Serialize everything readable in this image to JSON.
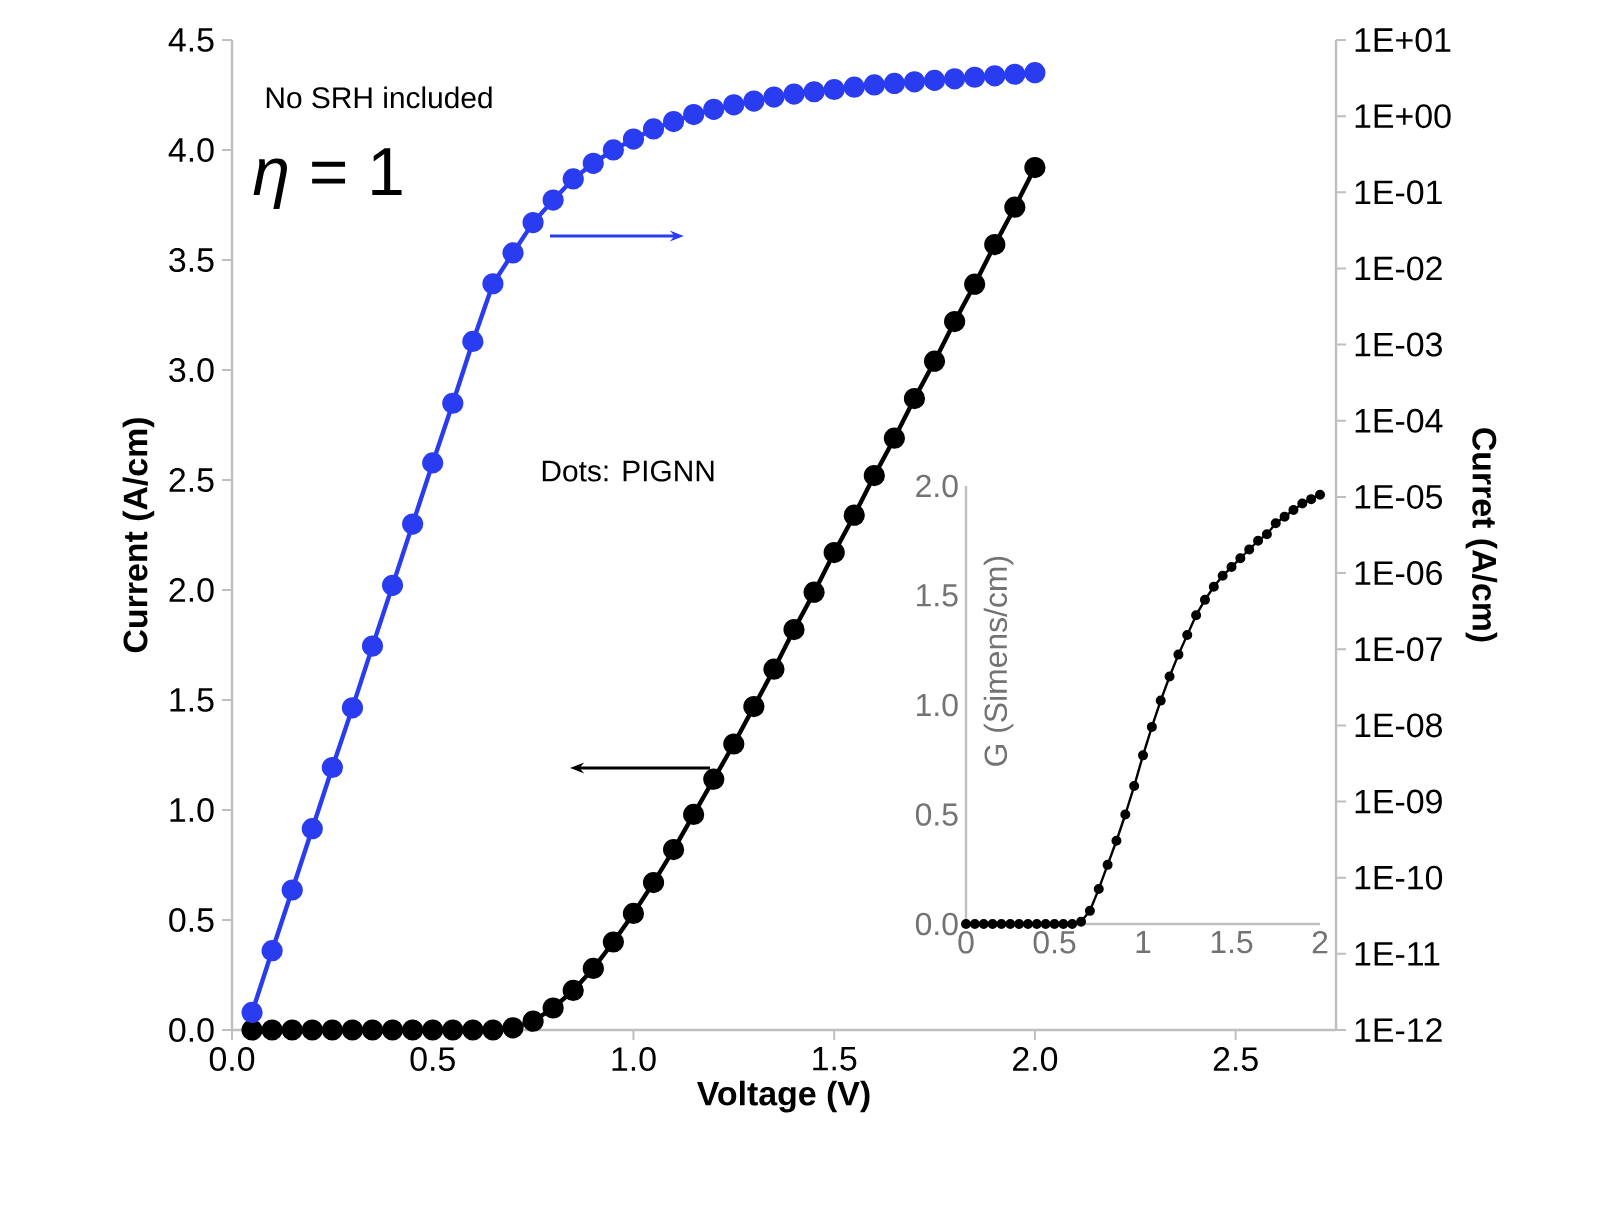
{
  "chart_data": [
    {
      "type": "line",
      "xlabel": "Voltage (V)",
      "ylabel": "Current (A/cm)",
      "y2label": "Curret (A/cm)",
      "xlim": [
        0,
        2.75
      ],
      "ylim": [
        0,
        4.5
      ],
      "y2lim": [
        1e-12,
        10
      ],
      "log": "y2",
      "xticks": [
        {
          "value": 0,
          "label": "0.0"
        },
        {
          "value": 0.5,
          "label": "0.5"
        },
        {
          "value": 1,
          "label": "1.0"
        },
        {
          "value": 1.5,
          "label": "1.5"
        },
        {
          "value": 2,
          "label": "2.0"
        },
        {
          "value": 2.5,
          "label": "2.5"
        }
      ],
      "yticks": [
        {
          "value": 0,
          "label": "0.0"
        },
        {
          "value": 0.5,
          "label": "0.5"
        },
        {
          "value": 1,
          "label": "1.0"
        },
        {
          "value": 1.5,
          "label": "1.5"
        },
        {
          "value": 2,
          "label": "2.0"
        },
        {
          "value": 2.5,
          "label": "2.5"
        },
        {
          "value": 3,
          "label": "3.0"
        },
        {
          "value": 3.5,
          "label": "3.5"
        },
        {
          "value": 4,
          "label": "4.0"
        },
        {
          "value": 4.5,
          "label": "4.5"
        }
      ],
      "y2ticks": [
        {
          "value": 1e-12,
          "label": "1E-12"
        },
        {
          "value": 1e-11,
          "label": "1E-11"
        },
        {
          "value": 1e-10,
          "label": "1E-10"
        },
        {
          "value": 1e-09,
          "label": "1E-09"
        },
        {
          "value": 1e-08,
          "label": "1E-08"
        },
        {
          "value": 1e-07,
          "label": "1E-07"
        },
        {
          "value": 1e-06,
          "label": "1E-06"
        },
        {
          "value": 1e-05,
          "label": "1E-05"
        },
        {
          "value": 0.0001,
          "label": "1E-04"
        },
        {
          "value": 0.001,
          "label": "1E-03"
        },
        {
          "value": 0.01,
          "label": "1E-02"
        },
        {
          "value": 0.1,
          "label": "1E-01"
        },
        {
          "value": 1,
          "label": "1E+00"
        },
        {
          "value": 10,
          "label": "1E+01"
        }
      ],
      "x": [
        0.05,
        0.1,
        0.15,
        0.2,
        0.25,
        0.3,
        0.35,
        0.4,
        0.45,
        0.5,
        0.55,
        0.6,
        0.65,
        0.7,
        0.75,
        0.8,
        0.85,
        0.9,
        0.95,
        1.0,
        1.05,
        1.1,
        1.15,
        1.2,
        1.25,
        1.3,
        1.35,
        1.4,
        1.45,
        1.5,
        1.55,
        1.6,
        1.65,
        1.7,
        1.75,
        1.8,
        1.85,
        1.9,
        1.95,
        2.0
      ],
      "marker": "circle",
      "line_style": "solid",
      "series": [
        {
          "color": "#000000",
          "values": [
            0,
            0,
            0,
            0,
            0,
            0,
            0,
            0,
            0,
            0,
            0,
            0,
            0,
            0.01,
            0.04,
            0.1,
            0.18,
            0.28,
            0.4,
            0.53,
            0.67,
            0.82,
            0.98,
            1.14,
            1.3,
            1.47,
            1.64,
            1.82,
            1.99,
            2.17,
            2.34,
            2.52,
            2.69,
            2.87,
            3.04,
            3.22,
            3.39,
            3.57,
            3.74,
            3.92
          ]
        },
        {
          "color": "#2a3cf0",
          "axis": "y2",
          "values": [
            1.7e-12,
            1.1e-11,
            6.9e-11,
            4.4e-10,
            2.8e-09,
            1.7e-08,
            1.1e-07,
            6.9e-07,
            4.4e-06,
            2.8e-05,
            0.00017,
            0.0011,
            0.0063,
            0.016,
            0.04,
            0.079,
            0.15,
            0.24,
            0.36,
            0.5,
            0.68,
            0.85,
            1.05,
            1.23,
            1.41,
            1.58,
            1.78,
            1.95,
            2.09,
            2.24,
            2.4,
            2.57,
            2.69,
            2.82,
            2.95,
            3.09,
            3.24,
            3.39,
            3.55,
            3.72
          ]
        }
      ],
      "annotations": [
        "No SRH included",
        "*η* = 1",
        "Dots: PIGNN"
      ]
    },
    {
      "type": "line",
      "ylabel": "G (Simens/cm)",
      "xlim": [
        0,
        2
      ],
      "ylim": [
        0,
        2
      ],
      "xticks": [
        0,
        0.5,
        1,
        1.5,
        2
      ],
      "yticks": [
        {
          "value": 0,
          "label": "0.0"
        },
        {
          "value": 0.5,
          "label": "0.5"
        },
        {
          "value": 1,
          "label": "1.0"
        },
        {
          "value": 1.5,
          "label": "1.5"
        },
        {
          "value": 2,
          "label": "2.0"
        }
      ],
      "x": [
        0,
        0.05,
        0.1,
        0.15,
        0.2,
        0.25,
        0.3,
        0.35,
        0.4,
        0.45,
        0.5,
        0.55,
        0.6,
        0.65,
        0.7,
        0.75,
        0.8,
        0.85,
        0.9,
        0.95,
        1.0,
        1.05,
        1.1,
        1.15,
        1.2,
        1.25,
        1.3,
        1.35,
        1.4,
        1.45,
        1.5,
        1.55,
        1.6,
        1.65,
        1.7,
        1.75,
        1.8,
        1.85,
        1.9,
        1.95,
        2.0
      ],
      "marker": "circle",
      "series": [
        {
          "color": "#000000",
          "values": [
            0,
            0,
            0,
            0,
            0,
            0,
            0,
            0,
            0,
            0,
            0,
            0,
            0,
            0.01,
            0.06,
            0.16,
            0.27,
            0.38,
            0.5,
            0.63,
            0.77,
            0.9,
            1.02,
            1.13,
            1.23,
            1.32,
            1.41,
            1.48,
            1.54,
            1.59,
            1.63,
            1.67,
            1.71,
            1.75,
            1.78,
            1.83,
            1.86,
            1.89,
            1.92,
            1.94,
            1.96
          ]
        }
      ]
    }
  ]
}
